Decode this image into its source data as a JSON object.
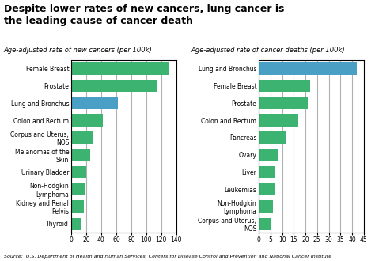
{
  "title": "Despite lower rates of new cancers, lung cancer is\nthe leading cause of cancer death",
  "source": "Source:  U.S. Department of Health and Human Services, Centers for Disease Control and Prevention and National Cancer Institute",
  "chart_data": [
    {
      "type": "bar",
      "orientation": "horizontal",
      "subtitle": "Age-adjusted rate of new cancers (per 100k)",
      "categories": [
        "Female Breast",
        "Prostate",
        "Lung and Bronchus",
        "Colon and Rectum",
        "Corpus and Uterus,\nNOS",
        "Melanomas of the\nSkin",
        "Urinary Bladder",
        "Non-Hodgkin\nLymphoma",
        "Kidney and Renal\nPelvis",
        "Thyroid"
      ],
      "values": [
        130,
        115,
        62,
        42,
        28,
        25,
        20,
        19,
        17,
        13
      ],
      "colors": [
        "#3cb371",
        "#3cb371",
        "#4a9fc4",
        "#3cb371",
        "#3cb371",
        "#3cb371",
        "#3cb371",
        "#3cb371",
        "#3cb371",
        "#3cb371"
      ],
      "xlim": [
        0,
        140
      ],
      "xticks": [
        0,
        20,
        40,
        60,
        80,
        100,
        120,
        140
      ],
      "grid": true
    },
    {
      "type": "bar",
      "orientation": "horizontal",
      "subtitle": "Age-adjusted rate of cancer deaths (per 100k)",
      "categories": [
        "Lung and Bronchus",
        "Female Breast",
        "Prostate",
        "Colon and Rectum",
        "Pancreas",
        "Ovary",
        "Liver",
        "Leukemias",
        "Non-Hodgkin\nLymphoma",
        "Corpus and Uterus,\nNOS"
      ],
      "values": [
        42,
        22,
        21,
        17,
        12,
        8,
        7,
        7,
        6,
        5
      ],
      "colors": [
        "#4a9fc4",
        "#3cb371",
        "#3cb371",
        "#3cb371",
        "#3cb371",
        "#3cb371",
        "#3cb371",
        "#3cb371",
        "#3cb371",
        "#3cb371"
      ],
      "xlim": [
        0,
        45
      ],
      "xticks": [
        0,
        5,
        10,
        15,
        20,
        25,
        30,
        35,
        40,
        45
      ],
      "grid": true
    }
  ]
}
